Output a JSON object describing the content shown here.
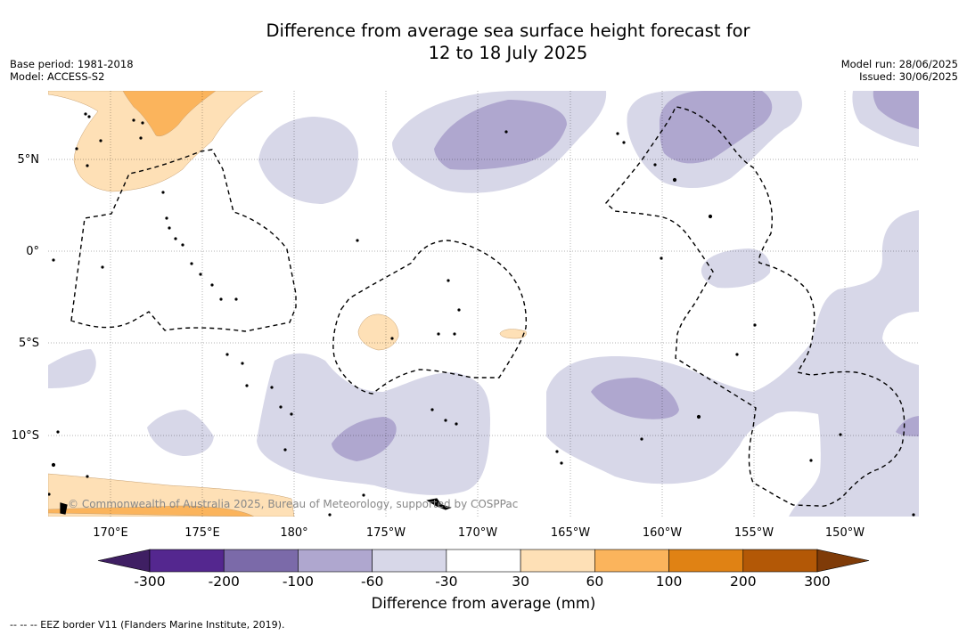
{
  "title": {
    "line1": "Difference from average sea surface height forecast for",
    "line2": "12 to 18 July 2025"
  },
  "meta_left": {
    "base_period": "Base period: 1981-2018",
    "model": "Model: ACCESS-S2"
  },
  "meta_right": {
    "model_run": "Model run: 28/06/2025",
    "issued": "Issued: 30/06/2025"
  },
  "map": {
    "lat_labels": [
      "5°N",
      "0°",
      "5°S",
      "10°S"
    ],
    "lon_labels": [
      "170°E",
      "175°E",
      "180°",
      "175°W",
      "170°W",
      "165°W",
      "160°W",
      "155°W",
      "150°W"
    ],
    "copyright": "© Commonwealth of Australia 2025, Bureau of Meteorology, supported by COSPPac"
  },
  "colorbar": {
    "colors": [
      "#3f1f63",
      "#54278f",
      "#7b6aa9",
      "#afa7cf",
      "#d7d7e8",
      "#ffffff",
      "#fee0b6",
      "#fbb45c",
      "#e08214",
      "#b35806",
      "#7f3b08"
    ],
    "ticks": [
      "-300",
      "-200",
      "-100",
      "-60",
      "-30",
      "30",
      "60",
      "100",
      "200",
      "300"
    ],
    "label": "Difference from average (mm)"
  },
  "footnote": "--  --  -- EEZ border V11 (Flanders Marine Institute, 2019)."
}
